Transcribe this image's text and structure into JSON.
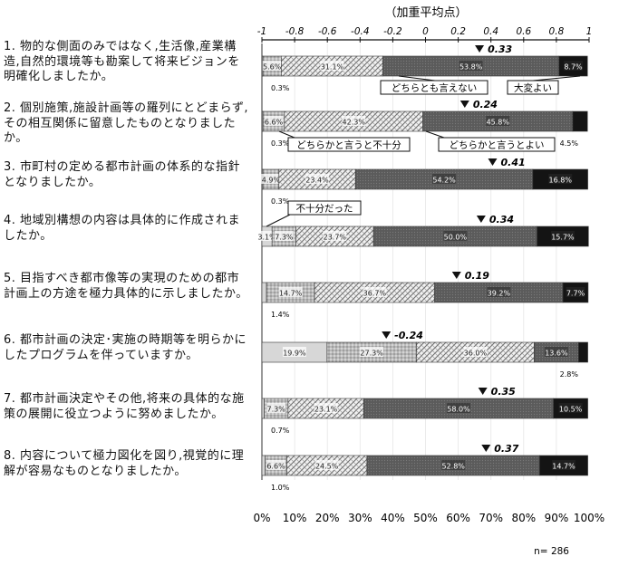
{
  "chart_data": {
    "type": "bar",
    "subtype": "horizontal-stacked-100-percent",
    "title": "（加重平均点）",
    "note": "n= 286",
    "weighted_axis": {
      "range": [
        -1,
        1
      ],
      "ticks": [
        "-1",
        "-0.8",
        "-0.6",
        "-0.4",
        "-0.2",
        "0",
        "0.2",
        "0.4",
        "0.6",
        "0.8",
        "1"
      ]
    },
    "percent_axis": {
      "range": [
        0,
        100
      ],
      "ticks": [
        "0%",
        "10%",
        "20%",
        "30%",
        "40%",
        "50%",
        "60%",
        "70%",
        "80%",
        "90%",
        "100%"
      ]
    },
    "series_labels": [
      "不十分だった",
      "どちらかと言うと不十分",
      "どちらとも言えない",
      "どちらかと言うとよい",
      "大変よい"
    ],
    "series_colors": [
      "#d7d7d7",
      "#b9b9b9",
      "#f1f1f1",
      "#5b5b5b",
      "#141414"
    ],
    "categories": [
      "1. 物的な側面のみではなく,生活像,産業構造,自然的環境等も勘案して将来ビジョンを明確化しましたか。",
      "2. 個別施策,施設計画等の羅列にとどまらず,その相互関係に留意したものとなりましたか。",
      "3. 市町村の定める都市計画の体系的な指針となりましたか。",
      "4. 地域別構想の内容は具体的に作成されましたか。",
      "5. 目指すべき都市像等の実現のための都市計画上の方途を極力具体的に示しましたか。",
      "6. 都市計画の決定･実施の時期等を明らかにしたプログラムを伴っていますか。",
      "7. 都市計画決定やその他,将来の具体的な施策の展開に役立つように努めましたか。",
      "8. 内容について極力図化を図り,視覚的に理解が容易なものとなりましたか。"
    ],
    "rows": [
      {
        "segments": [
          0.3,
          5.6,
          31.1,
          53.8,
          8.7
        ],
        "labels": [
          "0.3%",
          "5.6%",
          "31.1%",
          "53.8%",
          "8.7%"
        ],
        "weighted": 0.33
      },
      {
        "segments": [
          0.3,
          6.6,
          42.3,
          45.8,
          4.5
        ],
        "labels": [
          "0.3%",
          "6.6%",
          "42.3%",
          "45.8%",
          "4.5%"
        ],
        "weighted": 0.24
      },
      {
        "segments": [
          0.3,
          4.9,
          23.4,
          54.2,
          16.8
        ],
        "labels": [
          "0.3%",
          "4.9%",
          "23.4%",
          "54.2%",
          "16.8%"
        ],
        "weighted": 0.41
      },
      {
        "segments": [
          3.1,
          7.3,
          23.7,
          50.0,
          15.7
        ],
        "labels": [
          "3.1%",
          "7.3%",
          "23.7%",
          "50.0%",
          "15.7%"
        ],
        "weighted": 0.34
      },
      {
        "segments": [
          1.4,
          14.7,
          36.7,
          39.2,
          7.7
        ],
        "labels": [
          "1.4%",
          "14.7%",
          "36.7%",
          "39.2%",
          "7.7%"
        ],
        "weighted": 0.19
      },
      {
        "segments": [
          19.9,
          27.3,
          36.0,
          13.6,
          2.8
        ],
        "labels": [
          "19.9%",
          "27.3%",
          "36.0%",
          "13.6%",
          "2.8%"
        ],
        "weighted": -0.24
      },
      {
        "segments": [
          0.7,
          7.3,
          23.1,
          58.0,
          10.5
        ],
        "labels": [
          "0.7%",
          "7.3%",
          "23.1%",
          "58.0%",
          "10.5%"
        ],
        "weighted": 0.35
      },
      {
        "segments": [
          1.0,
          6.6,
          24.5,
          52.8,
          14.7
        ],
        "labels": [
          "1.0%",
          "6.6%",
          "24.5%",
          "52.8%",
          "14.7%"
        ],
        "weighted": 0.37
      }
    ],
    "weighted_labels": [
      "0.33",
      "0.24",
      "0.41",
      "0.34",
      "0.19",
      "-0.24",
      "0.35",
      "0.37"
    ]
  }
}
